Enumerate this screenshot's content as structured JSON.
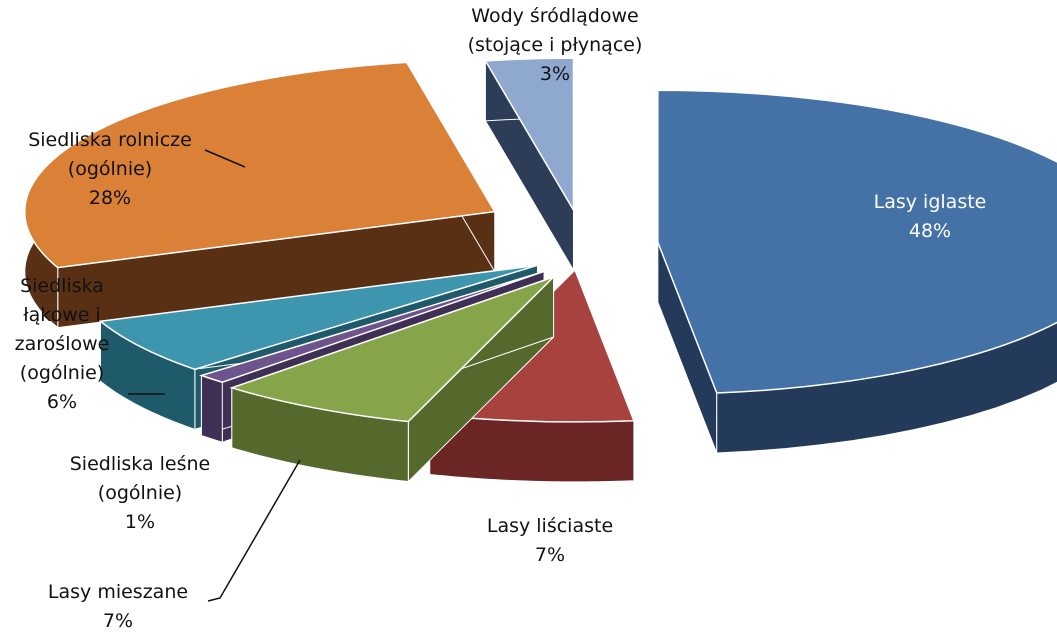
{
  "chart_data": {
    "type": "pie",
    "exploded": true,
    "three_d": true,
    "legend": "none",
    "slices": [
      {
        "name": "Lasy iglaste",
        "label_lines": [
          "Lasy iglaste"
        ],
        "value": 48,
        "value_label": "48%",
        "color": "#4471A6",
        "side_color": "#233A5A"
      },
      {
        "name": "Lasy liściaste",
        "label_lines": [
          "Lasy liściaste"
        ],
        "value": 7,
        "value_label": "7%",
        "color": "#A8423F",
        "side_color": "#6B2524"
      },
      {
        "name": "Lasy mieszane",
        "label_lines": [
          "Lasy mieszane"
        ],
        "value": 7,
        "value_label": "7%",
        "color": "#86A44A",
        "side_color": "#55692C"
      },
      {
        "name": "Siedliska leśne (ogólnie)",
        "label_lines": [
          "Siedliska leśne",
          "(ogólnie)"
        ],
        "value": 1,
        "value_label": "1%",
        "color": "#6E548D",
        "side_color": "#3F2F55"
      },
      {
        "name": "Siedliska łąkowe i zaroślowe (ogólnie)",
        "label_lines": [
          "Siedliska",
          "łąkowe i",
          "zaroślowe",
          "(ogólnie)"
        ],
        "value": 6,
        "value_label": "6%",
        "color": "#3D96AE",
        "side_color": "#1F5A6B"
      },
      {
        "name": "Siedliska rolnicze (ogólnie)",
        "label_lines": [
          "Siedliska rolnicze",
          "(ogólnie)"
        ],
        "value": 28,
        "value_label": "28%",
        "color": "#DA8137",
        "side_color": "#5A3014"
      },
      {
        "name": "Wody śródlądowe (stojące i płynące)",
        "label_lines": [
          "Wody śródlądowe",
          "(stojące i płynące)"
        ],
        "value": 3,
        "value_label": "3%",
        "color": "#8FA8CF",
        "side_color": "#2E3D57"
      }
    ]
  }
}
